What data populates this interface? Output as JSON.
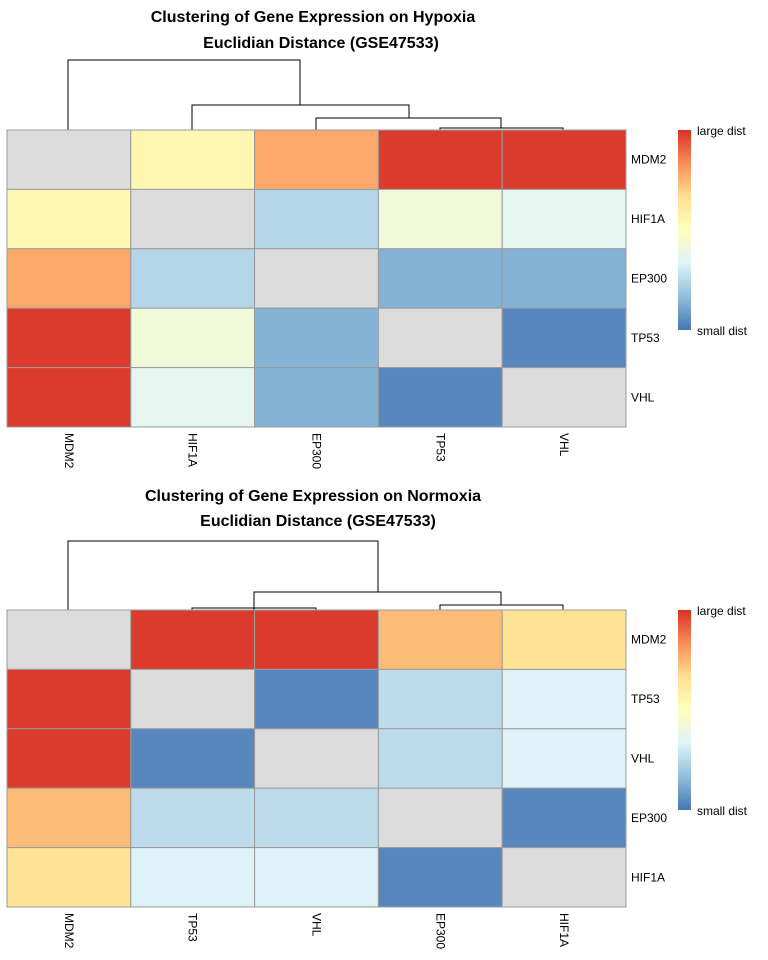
{
  "chart_data": [
    {
      "type": "heatmap",
      "title": "Clustering of Gene Expression on Hypoxia",
      "subtitle": "Euclidian Distance  (GSE47533)",
      "col_labels": [
        "MDM2",
        "HIF1A",
        "EP300",
        "TP53",
        "VHL"
      ],
      "row_labels": [
        "MDM2",
        "HIF1A",
        "EP300",
        "TP53",
        "VHL"
      ],
      "values": [
        [
          0.0,
          0.55,
          0.78,
          0.98,
          0.98
        ],
        [
          0.55,
          0.0,
          0.24,
          0.42,
          0.36
        ],
        [
          0.78,
          0.24,
          0.0,
          0.14,
          0.14
        ],
        [
          0.98,
          0.42,
          0.14,
          0.0,
          0.04
        ],
        [
          0.98,
          0.36,
          0.14,
          0.04,
          0.0
        ]
      ],
      "diagonal_color": "#dcdcdc",
      "legend": {
        "high_label": "large dist",
        "low_label": "small dist"
      }
    },
    {
      "type": "heatmap",
      "title": "Clustering of Gene Expression on Normoxia",
      "subtitle": "Euclidian Distance  (GSE47533)",
      "col_labels": [
        "MDM2",
        "TP53",
        "VHL",
        "EP300",
        "HIF1A"
      ],
      "row_labels": [
        "MDM2",
        "TP53",
        "VHL",
        "EP300",
        "HIF1A"
      ],
      "values": [
        [
          0.0,
          0.98,
          0.98,
          0.74,
          0.65
        ],
        [
          0.98,
          0.0,
          0.04,
          0.26,
          0.33
        ],
        [
          0.98,
          0.04,
          0.0,
          0.26,
          0.33
        ],
        [
          0.74,
          0.26,
          0.26,
          0.0,
          0.04
        ],
        [
          0.65,
          0.33,
          0.33,
          0.04,
          0.0
        ]
      ],
      "diagonal_color": "#dcdcdc",
      "legend": {
        "high_label": "large dist",
        "low_label": "small dist"
      }
    }
  ],
  "colors": {
    "scale": [
      "#4575b4",
      "#91bfdb",
      "#e0f3f8",
      "#ffffbf",
      "#fee090",
      "#fc8d59",
      "#d73027"
    ]
  }
}
